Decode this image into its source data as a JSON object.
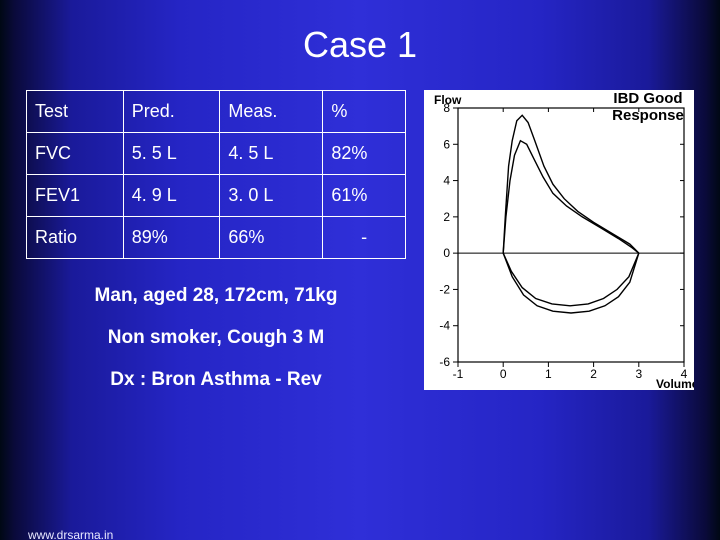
{
  "title": "Case 1",
  "table": {
    "headers": [
      "Test",
      "Pred.",
      "Meas.",
      "%"
    ],
    "rows": [
      [
        "FVC",
        "5. 5 L",
        "4. 5 L",
        "82%"
      ],
      [
        "FEV1",
        "4. 9 L",
        "3. 0 L",
        "61%"
      ],
      [
        "Ratio",
        "89%",
        "66%",
        "-"
      ]
    ],
    "border_color": "#ffffff",
    "text_color": "#ffffff",
    "font_size": 18
  },
  "notes": {
    "line1": "Man, aged 28, 172cm, 71kg",
    "line2": "Non smoker, Cough 3 M",
    "line3": "Dx : Bron Asthma - Rev",
    "font_size": 19,
    "color": "#ffffff"
  },
  "footer": "www.drsarma.in",
  "chart": {
    "type": "line",
    "label": "IBD Good Response",
    "background_color": "#ffffff",
    "axis_color": "#000000",
    "curve_color": "#000000",
    "xlabel": "Volume",
    "ylabel": "Flow",
    "xlim": [
      -1,
      4
    ],
    "ylim": [
      -6,
      8
    ],
    "xtick_step": 1,
    "ytick_step": 2,
    "xticks": [
      -1,
      0,
      1,
      2,
      3,
      4
    ],
    "yticks": [
      -6,
      -4,
      -2,
      0,
      2,
      4,
      6,
      8
    ],
    "curves": [
      {
        "name": "expiratory-pre",
        "points": [
          [
            0.0,
            0.0
          ],
          [
            0.05,
            2.2
          ],
          [
            0.12,
            4.8
          ],
          [
            0.2,
            6.2
          ],
          [
            0.3,
            7.3
          ],
          [
            0.42,
            7.6
          ],
          [
            0.55,
            7.2
          ],
          [
            0.7,
            6.2
          ],
          [
            0.9,
            4.8
          ],
          [
            1.1,
            3.8
          ],
          [
            1.35,
            3.0
          ],
          [
            1.65,
            2.3
          ],
          [
            2.0,
            1.7
          ],
          [
            2.4,
            1.1
          ],
          [
            2.8,
            0.5
          ],
          [
            3.0,
            0.0
          ]
        ]
      },
      {
        "name": "expiratory-post",
        "points": [
          [
            0.0,
            0.0
          ],
          [
            0.06,
            2.0
          ],
          [
            0.15,
            4.0
          ],
          [
            0.25,
            5.4
          ],
          [
            0.38,
            6.2
          ],
          [
            0.52,
            6.0
          ],
          [
            0.68,
            5.2
          ],
          [
            0.88,
            4.2
          ],
          [
            1.1,
            3.3
          ],
          [
            1.4,
            2.6
          ],
          [
            1.75,
            2.0
          ],
          [
            2.15,
            1.4
          ],
          [
            2.55,
            0.8
          ],
          [
            2.85,
            0.3
          ],
          [
            3.0,
            0.0
          ]
        ]
      },
      {
        "name": "inspiratory-a",
        "points": [
          [
            0.0,
            0.0
          ],
          [
            0.2,
            -1.3
          ],
          [
            0.45,
            -2.3
          ],
          [
            0.75,
            -2.9
          ],
          [
            1.1,
            -3.2
          ],
          [
            1.5,
            -3.3
          ],
          [
            1.9,
            -3.2
          ],
          [
            2.25,
            -2.9
          ],
          [
            2.55,
            -2.4
          ],
          [
            2.8,
            -1.6
          ],
          [
            3.0,
            0.0
          ]
        ]
      },
      {
        "name": "inspiratory-b",
        "points": [
          [
            0.0,
            0.0
          ],
          [
            0.18,
            -1.0
          ],
          [
            0.42,
            -1.9
          ],
          [
            0.72,
            -2.5
          ],
          [
            1.08,
            -2.8
          ],
          [
            1.48,
            -2.9
          ],
          [
            1.88,
            -2.8
          ],
          [
            2.22,
            -2.5
          ],
          [
            2.52,
            -2.0
          ],
          [
            2.78,
            -1.3
          ],
          [
            3.0,
            0.0
          ]
        ]
      }
    ]
  }
}
